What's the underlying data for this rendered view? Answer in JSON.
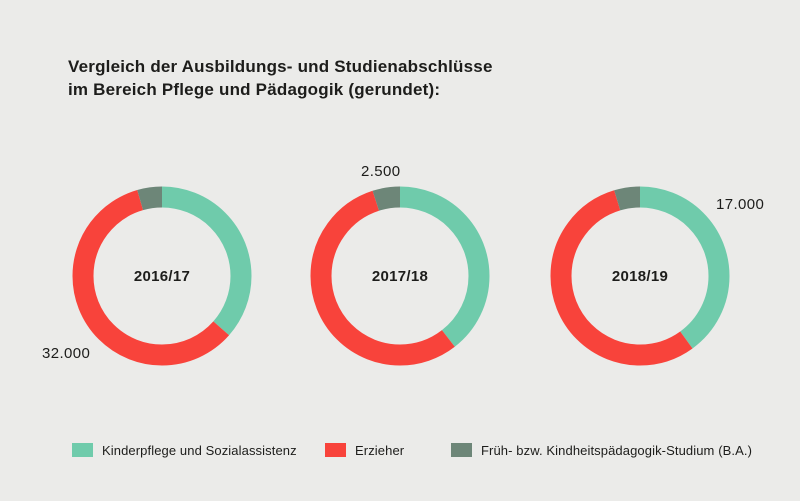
{
  "page": {
    "background": "#ebebe9",
    "text_color": "#1d1d1b"
  },
  "title": {
    "line1": "Vergleich der Ausbildungs- und Studienabschlüsse",
    "line2": "im Bereich Pflege und Pädagogik (gerundet):"
  },
  "colors": {
    "kinderpflege_green": "#6fcbab",
    "erzieher_red": "#f8433b",
    "studium_dark_green": "#6d8678"
  },
  "chart_data": [
    {
      "type": "pie",
      "variant": "donut",
      "center_label": "2016/17",
      "start_angle_deg": 0,
      "direction": "clockwise",
      "segments": [
        {
          "label": "Kinderpflege und Sozialassistenz",
          "color": "#6fcbab",
          "percent": 36.5
        },
        {
          "label": "Erzieher",
          "color": "#f8433b",
          "percent": 59.0
        },
        {
          "label": "Früh- bzw. Kindheitspädagogik-Studium (B.A.)",
          "color": "#6d8678",
          "percent": 4.5
        }
      ],
      "annotation": {
        "text": "32.000",
        "for_segment": "Erzieher",
        "position": "bottom-left"
      }
    },
    {
      "type": "pie",
      "variant": "donut",
      "center_label": "2017/18",
      "start_angle_deg": 0,
      "direction": "clockwise",
      "segments": [
        {
          "label": "Kinderpflege und Sozialassistenz",
          "color": "#6fcbab",
          "percent": 39.5
        },
        {
          "label": "Erzieher",
          "color": "#f8433b",
          "percent": 55.5
        },
        {
          "label": "Früh- bzw. Kindheitspädagogik-Studium (B.A.)",
          "color": "#6d8678",
          "percent": 5.0
        }
      ],
      "annotation": {
        "text": "2.500",
        "for_segment": "Früh- bzw. Kindheitspädagogik-Studium (B.A.)",
        "position": "top"
      }
    },
    {
      "type": "pie",
      "variant": "donut",
      "center_label": "2018/19",
      "start_angle_deg": 0,
      "direction": "clockwise",
      "segments": [
        {
          "label": "Kinderpflege und Sozialassistenz",
          "color": "#6fcbab",
          "percent": 40.0
        },
        {
          "label": "Erzieher",
          "color": "#f8433b",
          "percent": 55.3
        },
        {
          "label": "Früh- bzw. Kindheitspädagogik-Studium (B.A.)",
          "color": "#6d8678",
          "percent": 4.7
        }
      ],
      "annotation": {
        "text": "17.000",
        "for_segment": "Kinderpflege und Sozialassistenz",
        "position": "top-right"
      }
    }
  ],
  "legend": {
    "items": [
      {
        "label": "Kinderpflege und Sozialassistenz",
        "color": "#6fcbab"
      },
      {
        "label": "Erzieher",
        "color": "#f8433b"
      },
      {
        "label": "Früh- bzw. Kindheitspädagogik-Studium (B.A.)",
        "color": "#6d8678"
      }
    ]
  }
}
